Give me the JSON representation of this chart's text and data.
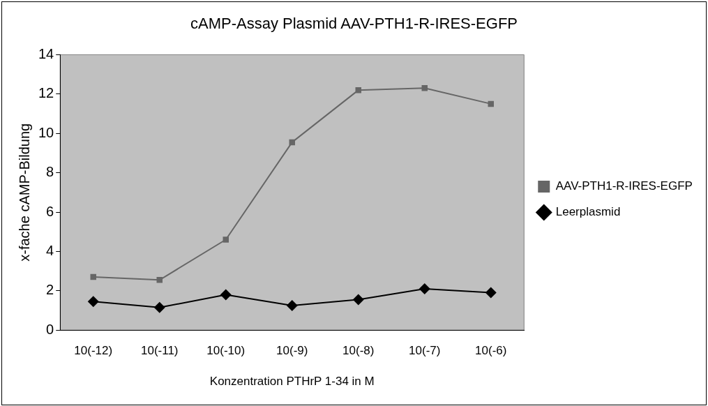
{
  "chart_data": {
    "type": "line",
    "title": "cAMP-Assay Plasmid AAV-PTH1-R-IRES-EGFP",
    "xlabel": "Konzentration PTHrP 1-34 in M",
    "ylabel": "x-fache cAMP-Bildung",
    "categories": [
      "10(-12)",
      "10(-11)",
      "10(-10)",
      "10(-9)",
      "10(-8)",
      "10(-7)",
      "10(-6)"
    ],
    "series": [
      {
        "name": "AAV-PTH1-R-IRES-EGFP",
        "color": "#666666",
        "marker": "square",
        "values": [
          2.7,
          2.55,
          4.6,
          9.55,
          12.2,
          12.3,
          11.5
        ]
      },
      {
        "name": "Leerplasmid",
        "color": "#000000",
        "marker": "diamond",
        "values": [
          1.45,
          1.15,
          1.8,
          1.25,
          1.55,
          2.1,
          1.9
        ]
      }
    ],
    "ylim": [
      0,
      14
    ],
    "yticks": [
      0,
      2,
      4,
      6,
      8,
      10,
      12,
      14
    ],
    "grid": false,
    "legend": "right",
    "line_style": "solid"
  }
}
